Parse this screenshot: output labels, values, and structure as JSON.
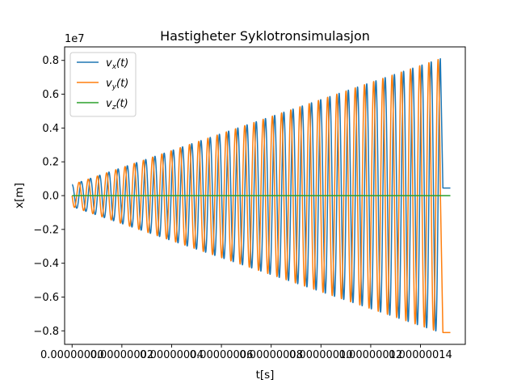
{
  "chart_data": {
    "type": "line",
    "title": "Hastigheter Syklotronsimulasjon",
    "xlabel": "t[s]",
    "ylabel": "x[m]",
    "y_offset_text": "1e7",
    "xlim": [
      -3e-09,
      1.58e-07
    ],
    "ylim": [
      -0.88,
      0.88
    ],
    "x_ticks": [
      0,
      2e-08,
      4e-08,
      6e-08,
      8e-08,
      1e-07,
      1.2e-07,
      1.4e-07
    ],
    "x_tick_labels": [
      "0.00000000",
      "0.00000002",
      "0.00000004",
      "0.00000006",
      "0.00000008",
      "0.00000010",
      "0.00000012",
      "0.00000014"
    ],
    "y_ticks": [
      -0.8,
      -0.6,
      -0.4,
      -0.2,
      0.0,
      0.2,
      0.4,
      0.6,
      0.8
    ],
    "y_tick_labels": [
      "−0.8",
      "−0.6",
      "−0.4",
      "−0.2",
      "0.0",
      "0.2",
      "0.4",
      "0.6",
      "0.8"
    ],
    "grid": false,
    "legend_position": "top-left",
    "series": [
      {
        "name": "v_x(t)",
        "legend_base": "v",
        "legend_sub": "x",
        "legend_suffix": "(t)",
        "color": "#1f77b4",
        "description": "oscillating with linearly growing amplitude (about 0.065 to 0.81 ×1e7), then held constant at about 0.045 ×1e7 after the acceleration stops",
        "x": [
          0,
          1.48e-07,
          1.49e-07,
          1.52e-07
        ],
        "amplitude_envelope": [
          0.065,
          0.81,
          0.045,
          0.045
        ]
      },
      {
        "name": "v_y(t)",
        "legend_base": "v",
        "legend_sub": "y",
        "legend_suffix": "(t)",
        "color": "#ff7f0e",
        "description": "oscillating with linearly growing amplitude, 90° phase shifted from v_x, then held at about −0.81 ×1e7",
        "x": [
          0,
          1.48e-07,
          1.49e-07,
          1.52e-07
        ],
        "amplitude_envelope": [
          0.065,
          0.81,
          -0.81,
          -0.81
        ]
      },
      {
        "name": "v_z(t)",
        "legend_base": "v",
        "legend_sub": "z",
        "legend_suffix": "(t)",
        "color": "#2ca02c",
        "x": [
          0,
          1.52e-07
        ],
        "values": [
          0,
          0
        ]
      }
    ],
    "oscillation_cycles": 40
  }
}
